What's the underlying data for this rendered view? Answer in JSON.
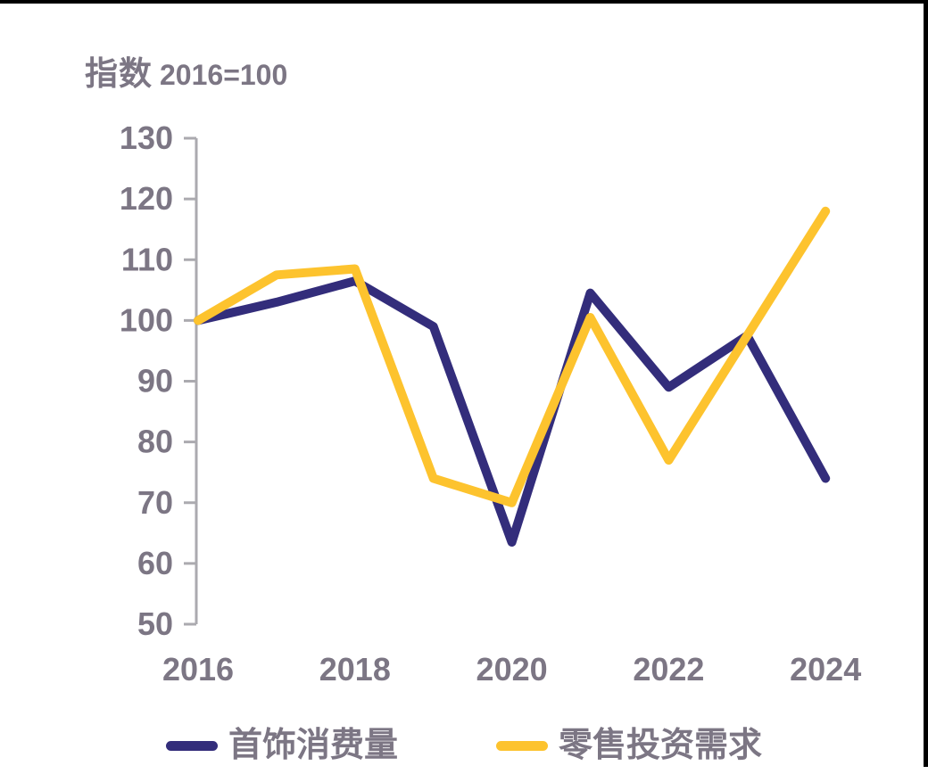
{
  "frame": {
    "background": "#FFFFFF",
    "border_color": "#000000"
  },
  "header": {
    "title": "指数",
    "subtitle": "2016=100"
  },
  "colors": {
    "label_text": "#7C7684",
    "axis_line": "#ABAAAF"
  },
  "chart_data": {
    "type": "line",
    "title": "指数 2016=100",
    "xlabel": "",
    "ylabel": "指数 (2016=100)",
    "x": [
      2016,
      2017,
      2018,
      2019,
      2020,
      2021,
      2022,
      2023,
      2024
    ],
    "x_tick_labels": [
      "2016",
      "2018",
      "2020",
      "2022",
      "2024"
    ],
    "y_ticks": [
      130,
      120,
      110,
      100,
      90,
      80,
      70,
      60,
      50
    ],
    "ylim": [
      50,
      130
    ],
    "grid": false,
    "legend_position": "bottom",
    "series": [
      {
        "name": "首饰消费量",
        "color": "#332D7B",
        "values": [
          100,
          103,
          106.5,
          99,
          63.5,
          104.5,
          89,
          97.5,
          74
        ]
      },
      {
        "name": "零售投资需求",
        "color": "#FDC32E",
        "values": [
          100,
          107.5,
          108.5,
          74,
          70,
          100.5,
          77,
          97.5,
          118
        ]
      }
    ]
  }
}
